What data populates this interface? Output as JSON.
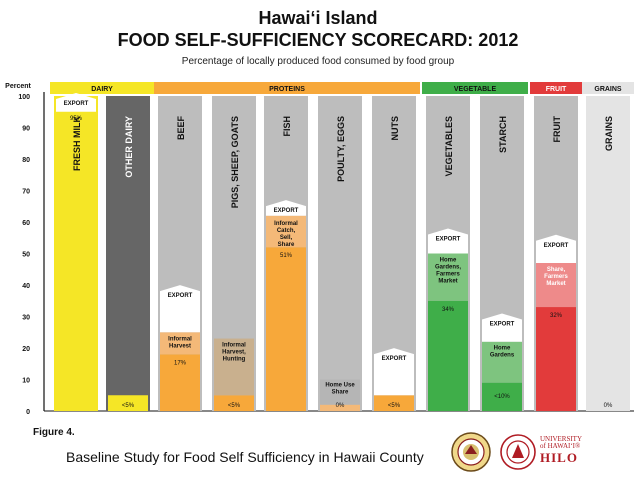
{
  "header": {
    "title_line1": "Hawai‘i Island",
    "title_line2": "FOOD SELF-SUFFICIENCY SCORECARD:  2012",
    "subtitle": "Percentage of locally produced food consumed by food group"
  },
  "chart_data": {
    "type": "bar",
    "ylabel": "Percent",
    "ylim": [
      0,
      100
    ],
    "yticks": [
      0,
      10,
      20,
      30,
      40,
      50,
      60,
      70,
      80,
      90,
      100
    ],
    "groups": [
      {
        "label": "DAIRY",
        "color": "#f5e626",
        "bars": [
          0,
          1
        ]
      },
      {
        "label": "PROTEINS",
        "color": "#f7a83a",
        "bars": [
          2,
          3,
          4,
          5,
          6
        ]
      },
      {
        "label": "VEGETABLE",
        "color": "#3fae49",
        "bars": [
          7,
          8
        ]
      },
      {
        "label": "FRUIT",
        "color": "#e23b3b",
        "bars": [
          9
        ]
      },
      {
        "label": "GRAINS",
        "color": "#e4e4e4",
        "bars": [
          10
        ]
      }
    ],
    "bars": [
      {
        "label": "FRESH MILK",
        "bg": "#f5e626",
        "label_color": "#111111",
        "value": 95,
        "value_label": "95%",
        "segments": [
          {
            "from": 0,
            "to": 95,
            "color": "#f5e626"
          }
        ],
        "sub_label": "",
        "export": {
          "from": 95,
          "to": 100,
          "text": "EXPORT"
        }
      },
      {
        "label": "OTHER DAIRY",
        "bg": "#666666",
        "label_color": "#ffffff",
        "value": 5,
        "value_label": "<5%",
        "segments": [
          {
            "from": 0,
            "to": 5,
            "color": "#f5e626"
          }
        ],
        "sub_label": "",
        "export": null
      },
      {
        "label": "BEEF",
        "bg": "#bdbdbd",
        "label_color": "#111111",
        "value": 17,
        "value_label": "17%",
        "segments": [
          {
            "from": 0,
            "to": 18,
            "color": "#f7a83a"
          },
          {
            "from": 18,
            "to": 25,
            "color": "#f4b978"
          }
        ],
        "sub_label": "Informal Harvest",
        "export": {
          "from": 25,
          "to": 39,
          "text": "EXPORT"
        }
      },
      {
        "label": "PIGS, SHEEP, GOATS",
        "bg": "#bdbdbd",
        "label_color": "#111111",
        "value": 5,
        "value_label": "<5%",
        "segments": [
          {
            "from": 0,
            "to": 5,
            "color": "#f7a83a"
          },
          {
            "from": 5,
            "to": 23,
            "color": "#c9b08e"
          }
        ],
        "sub_label": "Informal Harvest, Hunting",
        "export": null
      },
      {
        "label": "FISH",
        "bg": "#bdbdbd",
        "label_color": "#111111",
        "value": 51,
        "value_label": "51%",
        "segments": [
          {
            "from": 0,
            "to": 52,
            "color": "#f7a83a"
          },
          {
            "from": 52,
            "to": 62,
            "color": "#f4b978"
          }
        ],
        "sub_label": "Informal Catch, Sell, Share",
        "export": {
          "from": 62,
          "to": 66,
          "text": "EXPORT"
        }
      },
      {
        "label": "POULTY, EGGS",
        "bg": "#bdbdbd",
        "label_color": "#111111",
        "value": 0,
        "value_label": "0%",
        "segments": [
          {
            "from": 0,
            "to": 2,
            "color": "#f4b978"
          },
          {
            "from": 2,
            "to": 10,
            "color": "#b5b5b5"
          }
        ],
        "sub_label": "Home Use Share",
        "export": null
      },
      {
        "label": "NUTS",
        "bg": "#bdbdbd",
        "label_color": "#111111",
        "value": 5,
        "value_label": "<5%",
        "segments": [
          {
            "from": 0,
            "to": 5,
            "color": "#f7a83a"
          }
        ],
        "sub_label": "",
        "export": {
          "from": 5,
          "to": 19,
          "text": "EXPORT"
        }
      },
      {
        "label": "VEGETABLES",
        "bg": "#bdbdbd",
        "label_color": "#111111",
        "value": 34,
        "value_label": "34%",
        "segments": [
          {
            "from": 0,
            "to": 35,
            "color": "#3fae49"
          },
          {
            "from": 35,
            "to": 50,
            "color": "#7ec47f"
          }
        ],
        "sub_label": "Home Gardens, Farmers Market",
        "export": {
          "from": 50,
          "to": 57,
          "text": "EXPORT"
        }
      },
      {
        "label": "STARCH",
        "bg": "#bdbdbd",
        "label_color": "#111111",
        "value": 10,
        "value_label": "<10%",
        "segments": [
          {
            "from": 0,
            "to": 9,
            "color": "#3fae49"
          },
          {
            "from": 9,
            "to": 22,
            "color": "#7ec47f"
          }
        ],
        "sub_label": "Home Gardens",
        "export": {
          "from": 22,
          "to": 30,
          "text": "EXPORT"
        }
      },
      {
        "label": "FRUIT",
        "bg": "#bdbdbd",
        "label_color": "#111111",
        "value": 32,
        "value_label": "32%",
        "segments": [
          {
            "from": 0,
            "to": 33,
            "color": "#e23b3b"
          },
          {
            "from": 33,
            "to": 47,
            "color": "#ee8a8a"
          }
        ],
        "sub_label": "Share, Farmers Market",
        "export": {
          "from": 47,
          "to": 55,
          "text": "EXPORT"
        }
      },
      {
        "label": "GRAINS",
        "bg": "#e4e4e4",
        "label_color": "#111111",
        "value": 0,
        "value_label": "0%",
        "segments": [],
        "sub_label": "",
        "export": null
      }
    ]
  },
  "footer": {
    "figure_label": "Figure 4.",
    "caption": "Baseline Study for Food Self Sufficiency in Hawaii County",
    "uh_line1": "UNIVERSITY",
    "uh_line2": "of HAWAI‘I®",
    "uh_line3": "HILO"
  }
}
